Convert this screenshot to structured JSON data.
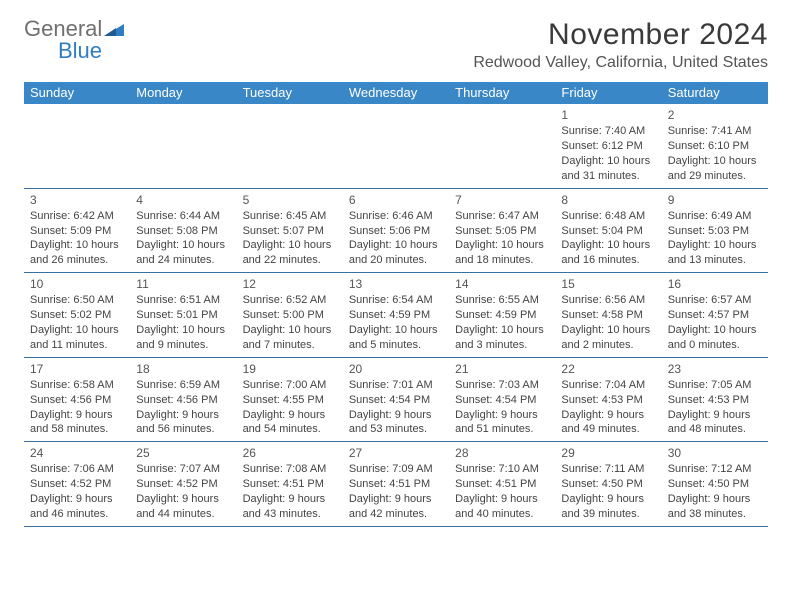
{
  "logo": {
    "word1": "General",
    "word2": "Blue"
  },
  "title": "November 2024",
  "subtitle": "Redwood Valley, California, United States",
  "colors": {
    "header_bg": "#3a87c7",
    "header_text": "#ffffff",
    "rule": "#3a70a0",
    "logo_blue": "#2f7ec2",
    "logo_gray": "#707070"
  },
  "day_names": [
    "Sunday",
    "Monday",
    "Tuesday",
    "Wednesday",
    "Thursday",
    "Friday",
    "Saturday"
  ],
  "weeks": [
    [
      null,
      null,
      null,
      null,
      null,
      {
        "n": "1",
        "sr": "Sunrise: 7:40 AM",
        "ss": "Sunset: 6:12 PM",
        "dl1": "Daylight: 10 hours",
        "dl2": "and 31 minutes."
      },
      {
        "n": "2",
        "sr": "Sunrise: 7:41 AM",
        "ss": "Sunset: 6:10 PM",
        "dl1": "Daylight: 10 hours",
        "dl2": "and 29 minutes."
      }
    ],
    [
      {
        "n": "3",
        "sr": "Sunrise: 6:42 AM",
        "ss": "Sunset: 5:09 PM",
        "dl1": "Daylight: 10 hours",
        "dl2": "and 26 minutes."
      },
      {
        "n": "4",
        "sr": "Sunrise: 6:44 AM",
        "ss": "Sunset: 5:08 PM",
        "dl1": "Daylight: 10 hours",
        "dl2": "and 24 minutes."
      },
      {
        "n": "5",
        "sr": "Sunrise: 6:45 AM",
        "ss": "Sunset: 5:07 PM",
        "dl1": "Daylight: 10 hours",
        "dl2": "and 22 minutes."
      },
      {
        "n": "6",
        "sr": "Sunrise: 6:46 AM",
        "ss": "Sunset: 5:06 PM",
        "dl1": "Daylight: 10 hours",
        "dl2": "and 20 minutes."
      },
      {
        "n": "7",
        "sr": "Sunrise: 6:47 AM",
        "ss": "Sunset: 5:05 PM",
        "dl1": "Daylight: 10 hours",
        "dl2": "and 18 minutes."
      },
      {
        "n": "8",
        "sr": "Sunrise: 6:48 AM",
        "ss": "Sunset: 5:04 PM",
        "dl1": "Daylight: 10 hours",
        "dl2": "and 16 minutes."
      },
      {
        "n": "9",
        "sr": "Sunrise: 6:49 AM",
        "ss": "Sunset: 5:03 PM",
        "dl1": "Daylight: 10 hours",
        "dl2": "and 13 minutes."
      }
    ],
    [
      {
        "n": "10",
        "sr": "Sunrise: 6:50 AM",
        "ss": "Sunset: 5:02 PM",
        "dl1": "Daylight: 10 hours",
        "dl2": "and 11 minutes."
      },
      {
        "n": "11",
        "sr": "Sunrise: 6:51 AM",
        "ss": "Sunset: 5:01 PM",
        "dl1": "Daylight: 10 hours",
        "dl2": "and 9 minutes."
      },
      {
        "n": "12",
        "sr": "Sunrise: 6:52 AM",
        "ss": "Sunset: 5:00 PM",
        "dl1": "Daylight: 10 hours",
        "dl2": "and 7 minutes."
      },
      {
        "n": "13",
        "sr": "Sunrise: 6:54 AM",
        "ss": "Sunset: 4:59 PM",
        "dl1": "Daylight: 10 hours",
        "dl2": "and 5 minutes."
      },
      {
        "n": "14",
        "sr": "Sunrise: 6:55 AM",
        "ss": "Sunset: 4:59 PM",
        "dl1": "Daylight: 10 hours",
        "dl2": "and 3 minutes."
      },
      {
        "n": "15",
        "sr": "Sunrise: 6:56 AM",
        "ss": "Sunset: 4:58 PM",
        "dl1": "Daylight: 10 hours",
        "dl2": "and 2 minutes."
      },
      {
        "n": "16",
        "sr": "Sunrise: 6:57 AM",
        "ss": "Sunset: 4:57 PM",
        "dl1": "Daylight: 10 hours",
        "dl2": "and 0 minutes."
      }
    ],
    [
      {
        "n": "17",
        "sr": "Sunrise: 6:58 AM",
        "ss": "Sunset: 4:56 PM",
        "dl1": "Daylight: 9 hours",
        "dl2": "and 58 minutes."
      },
      {
        "n": "18",
        "sr": "Sunrise: 6:59 AM",
        "ss": "Sunset: 4:56 PM",
        "dl1": "Daylight: 9 hours",
        "dl2": "and 56 minutes."
      },
      {
        "n": "19",
        "sr": "Sunrise: 7:00 AM",
        "ss": "Sunset: 4:55 PM",
        "dl1": "Daylight: 9 hours",
        "dl2": "and 54 minutes."
      },
      {
        "n": "20",
        "sr": "Sunrise: 7:01 AM",
        "ss": "Sunset: 4:54 PM",
        "dl1": "Daylight: 9 hours",
        "dl2": "and 53 minutes."
      },
      {
        "n": "21",
        "sr": "Sunrise: 7:03 AM",
        "ss": "Sunset: 4:54 PM",
        "dl1": "Daylight: 9 hours",
        "dl2": "and 51 minutes."
      },
      {
        "n": "22",
        "sr": "Sunrise: 7:04 AM",
        "ss": "Sunset: 4:53 PM",
        "dl1": "Daylight: 9 hours",
        "dl2": "and 49 minutes."
      },
      {
        "n": "23",
        "sr": "Sunrise: 7:05 AM",
        "ss": "Sunset: 4:53 PM",
        "dl1": "Daylight: 9 hours",
        "dl2": "and 48 minutes."
      }
    ],
    [
      {
        "n": "24",
        "sr": "Sunrise: 7:06 AM",
        "ss": "Sunset: 4:52 PM",
        "dl1": "Daylight: 9 hours",
        "dl2": "and 46 minutes."
      },
      {
        "n": "25",
        "sr": "Sunrise: 7:07 AM",
        "ss": "Sunset: 4:52 PM",
        "dl1": "Daylight: 9 hours",
        "dl2": "and 44 minutes."
      },
      {
        "n": "26",
        "sr": "Sunrise: 7:08 AM",
        "ss": "Sunset: 4:51 PM",
        "dl1": "Daylight: 9 hours",
        "dl2": "and 43 minutes."
      },
      {
        "n": "27",
        "sr": "Sunrise: 7:09 AM",
        "ss": "Sunset: 4:51 PM",
        "dl1": "Daylight: 9 hours",
        "dl2": "and 42 minutes."
      },
      {
        "n": "28",
        "sr": "Sunrise: 7:10 AM",
        "ss": "Sunset: 4:51 PM",
        "dl1": "Daylight: 9 hours",
        "dl2": "and 40 minutes."
      },
      {
        "n": "29",
        "sr": "Sunrise: 7:11 AM",
        "ss": "Sunset: 4:50 PM",
        "dl1": "Daylight: 9 hours",
        "dl2": "and 39 minutes."
      },
      {
        "n": "30",
        "sr": "Sunrise: 7:12 AM",
        "ss": "Sunset: 4:50 PM",
        "dl1": "Daylight: 9 hours",
        "dl2": "and 38 minutes."
      }
    ]
  ]
}
